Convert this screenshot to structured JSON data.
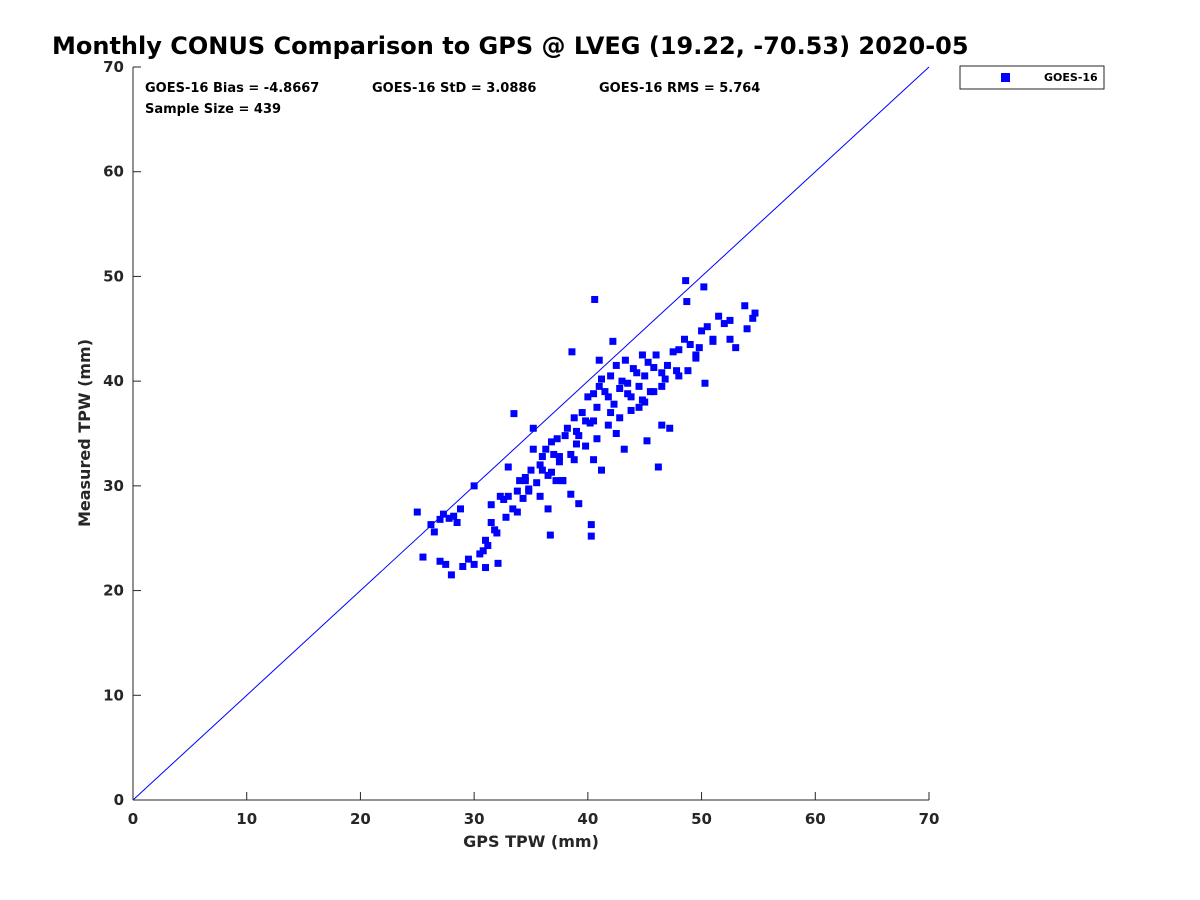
{
  "chart_data": {
    "type": "scatter",
    "title": "Monthly CONUS Comparison to GPS @ LVEG (19.22, -70.53) 2020-05",
    "xlabel": "GPS TPW (mm)",
    "ylabel": "Measured TPW (mm)",
    "xlim": [
      0,
      70
    ],
    "ylim": [
      0,
      70
    ],
    "xticks": [
      "0",
      "10",
      "20",
      "30",
      "40",
      "50",
      "60",
      "70"
    ],
    "yticks": [
      "0",
      "10",
      "20",
      "30",
      "40",
      "50",
      "60",
      "70"
    ],
    "grid": false,
    "legend_position": "outside-top-right",
    "reference_line": {
      "x": [
        0,
        70
      ],
      "y": [
        0,
        70
      ],
      "color": "#0000ff"
    },
    "stats": {
      "bias": "GOES-16 Bias = -4.8667",
      "std": "GOES-16 StD = 3.0886",
      "rms": "GOES-16 RMS = 5.764",
      "sample_size": "Sample Size = 439"
    },
    "series": [
      {
        "name": "GOES-16",
        "color": "#0000ff",
        "marker": "square",
        "x": [
          25.0,
          26.2,
          26.5,
          27.0,
          27.3,
          27.5,
          28.0,
          28.8,
          29.0,
          29.5,
          30.0,
          30.5,
          31.0,
          31.2,
          31.5,
          32.0,
          32.3,
          32.6,
          33.0,
          33.4,
          33.8,
          34.0,
          34.3,
          34.5,
          34.8,
          35.0,
          35.2,
          35.5,
          35.8,
          36.0,
          36.3,
          36.5,
          36.8,
          37.0,
          37.3,
          37.5,
          37.8,
          38.0,
          38.2,
          38.5,
          38.8,
          39.0,
          39.2,
          39.5,
          39.8,
          40.0,
          40.2,
          40.5,
          40.8,
          41.0,
          41.2,
          41.5,
          41.8,
          42.0,
          42.3,
          42.5,
          42.8,
          43.0,
          43.3,
          43.5,
          43.8,
          44.0,
          44.3,
          44.5,
          44.8,
          45.0,
          45.3,
          45.5,
          45.8,
          46.0,
          46.5,
          47.0,
          47.5,
          48.0,
          48.5,
          49.0,
          49.5,
          50.0,
          50.5,
          51.0,
          51.5,
          52.0,
          52.5,
          53.0,
          53.8,
          54.5,
          25.5,
          27.0,
          28.5,
          30.0,
          31.5,
          33.0,
          34.5,
          36.0,
          37.5,
          39.0,
          40.5,
          42.0,
          43.5,
          45.0,
          46.5,
          48.0,
          49.5,
          51.0,
          52.5,
          54.0,
          30.8,
          32.8,
          34.8,
          36.8,
          38.8,
          40.8,
          42.8,
          44.8,
          46.8,
          48.8,
          31.8,
          33.8,
          35.8,
          37.8,
          39.8,
          41.8,
          43.8,
          45.8,
          47.8,
          49.8,
          36.5,
          38.5,
          40.5,
          42.5,
          44.5,
          46.5,
          35.2,
          37.2,
          39.2,
          41.2,
          43.2,
          45.2,
          47.2,
          40.3,
          40.3,
          40.6,
          41.0,
          42.2,
          36.7,
          38.6,
          46.2,
          48.6,
          48.7,
          50.2,
          54.7,
          50.3,
          27.8,
          28.2,
          31.0,
          32.1,
          33.5
        ],
        "y": [
          27.5,
          26.3,
          25.6,
          26.8,
          27.3,
          22.5,
          21.5,
          27.8,
          22.3,
          23.0,
          22.5,
          23.5,
          24.8,
          24.3,
          26.5,
          25.5,
          29.0,
          28.7,
          31.8,
          27.8,
          29.5,
          30.5,
          28.8,
          30.8,
          29.7,
          31.5,
          33.5,
          30.3,
          32.0,
          32.8,
          33.5,
          31.0,
          34.2,
          33.0,
          34.5,
          32.3,
          30.5,
          34.8,
          35.5,
          33.0,
          36.5,
          35.2,
          34.8,
          37.0,
          36.2,
          38.5,
          36.0,
          38.8,
          37.5,
          39.5,
          40.2,
          39.0,
          38.5,
          40.5,
          37.8,
          41.5,
          39.3,
          40.0,
          42.0,
          39.8,
          38.5,
          41.2,
          40.8,
          39.5,
          42.5,
          40.5,
          41.8,
          39.0,
          41.3,
          42.5,
          40.8,
          41.5,
          42.8,
          43.0,
          44.0,
          43.5,
          42.2,
          44.8,
          45.2,
          43.8,
          46.2,
          45.5,
          44.0,
          43.2,
          47.2,
          46.0,
          23.2,
          22.8,
          26.5,
          30.0,
          28.2,
          29.0,
          30.5,
          31.5,
          32.8,
          34.0,
          36.2,
          37.0,
          38.8,
          38.0,
          39.5,
          40.5,
          42.5,
          44.0,
          45.8,
          45.0,
          23.8,
          27.0,
          29.5,
          31.3,
          32.5,
          34.5,
          36.5,
          38.2,
          40.2,
          41.0,
          25.8,
          27.5,
          29.0,
          30.5,
          33.8,
          35.8,
          37.2,
          39.0,
          41.0,
          43.2,
          27.8,
          29.2,
          32.5,
          35.0,
          37.5,
          35.8,
          35.5,
          30.5,
          28.3,
          31.5,
          33.5,
          34.3,
          35.5,
          25.2,
          26.3,
          47.8,
          42.0,
          43.8,
          25.3,
          42.8,
          31.8,
          49.6,
          47.6,
          49.0,
          46.5,
          39.8,
          26.9,
          27.1,
          22.2,
          22.6,
          36.9
        ]
      }
    ]
  }
}
